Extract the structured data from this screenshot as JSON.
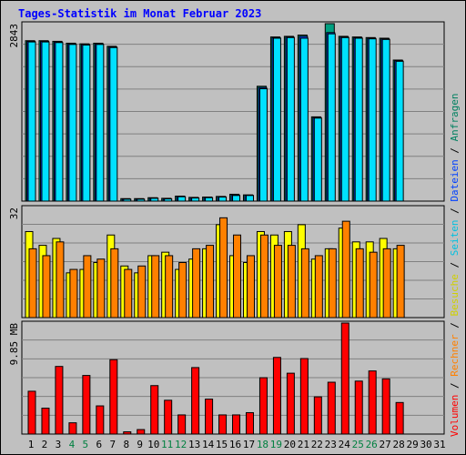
{
  "title": "Tages-Statistik im Monat Februar 2023",
  "colors": {
    "background": "#c0c0c0",
    "plot_bg": "#c0c0c0",
    "grid": "#808080",
    "title": "#0000ff",
    "hits": "#00a080",
    "files": "#0040ff",
    "pages": "#00e0ff",
    "visits": "#ffff00",
    "sites": "#ff8000",
    "volume": "#ff0000",
    "weekend_label": "#008040"
  },
  "right_axis_labels": [
    {
      "text": "Volumen",
      "color": "#ff0000"
    },
    {
      "text": " / ",
      "color": "#000000"
    },
    {
      "text": "Rechner",
      "color": "#ff8000"
    },
    {
      "text": " / ",
      "color": "#000000"
    },
    {
      "text": "Besuche",
      "color": "#d0d000"
    },
    {
      "text": " / ",
      "color": "#000000"
    },
    {
      "text": "Seiten",
      "color": "#00c0e0"
    },
    {
      "text": " / ",
      "color": "#000000"
    },
    {
      "text": "Dateien",
      "color": "#0040ff"
    },
    {
      "text": " / ",
      "color": "#000000"
    },
    {
      "text": "Anfragen",
      "color": "#008060"
    }
  ],
  "chart_data": [
    {
      "type": "bar",
      "name": "hits-files-pages",
      "ymax_label": "2843",
      "ylim": [
        0,
        2843
      ],
      "categories": [
        "1",
        "2",
        "3",
        "4",
        "5",
        "6",
        "7",
        "8",
        "9",
        "10",
        "11",
        "12",
        "13",
        "14",
        "15",
        "16",
        "17",
        "18",
        "19",
        "20",
        "21",
        "22",
        "23",
        "24",
        "25",
        "26",
        "27",
        "28",
        "29",
        "30",
        "31"
      ],
      "weekend_days": [
        4,
        5,
        11,
        12,
        18,
        19,
        25,
        26
      ],
      "series": [
        {
          "values": [
            2570,
            2570,
            2560,
            2530,
            2520,
            2530,
            2480,
            40,
            40,
            55,
            45,
            80,
            60,
            65,
            75,
            110,
            100,
            1840,
            2630,
            2640,
            2660,
            1350,
            2843,
            2640,
            2630,
            2620,
            2610,
            2260,
            null,
            null,
            null
          ]
        },
        {
          "values": [
            2560,
            2560,
            2550,
            2520,
            2510,
            2520,
            2470,
            35,
            35,
            50,
            40,
            75,
            55,
            60,
            70,
            100,
            95,
            1820,
            2620,
            2630,
            2640,
            1340,
            2700,
            2630,
            2620,
            2610,
            2600,
            2250,
            null,
            null,
            null
          ]
        },
        {
          "values": [
            2550,
            2550,
            2540,
            2510,
            2500,
            2510,
            2460,
            30,
            30,
            45,
            35,
            70,
            50,
            55,
            65,
            90,
            90,
            1800,
            2610,
            2620,
            2610,
            1330,
            2680,
            2620,
            2610,
            2600,
            2590,
            2240,
            null,
            null,
            null
          ]
        }
      ]
    },
    {
      "type": "bar",
      "name": "visits-sites",
      "ymax_label": "32",
      "ylim": [
        0,
        32
      ],
      "categories": [
        "1",
        "2",
        "3",
        "4",
        "5",
        "6",
        "7",
        "8",
        "9",
        "10",
        "11",
        "12",
        "13",
        "14",
        "15",
        "16",
        "17",
        "18",
        "19",
        "20",
        "21",
        "22",
        "23",
        "24",
        "25",
        "26",
        "27",
        "28",
        "29",
        "30",
        "31"
      ],
      "series": [
        {
          "values": [
            25,
            21,
            23,
            13,
            14,
            16,
            24,
            15,
            13,
            18,
            19,
            14,
            17,
            20,
            27,
            18,
            16,
            25,
            24,
            25,
            27,
            17,
            20,
            26,
            22,
            22,
            23,
            20,
            null,
            null,
            null
          ]
        },
        {
          "values": [
            20,
            18,
            22,
            14,
            18,
            17,
            20,
            14,
            15,
            18,
            18,
            16,
            20,
            21,
            29,
            24,
            18,
            24,
            21,
            21,
            20,
            18,
            20,
            28,
            20,
            19,
            20,
            21,
            null,
            null,
            null
          ]
        }
      ]
    },
    {
      "type": "bar",
      "name": "volume",
      "ymax_label": "9.85 MB",
      "ylim": [
        0,
        9.85
      ],
      "categories": [
        "1",
        "2",
        "3",
        "4",
        "5",
        "6",
        "7",
        "8",
        "9",
        "10",
        "11",
        "12",
        "13",
        "14",
        "15",
        "16",
        "17",
        "18",
        "19",
        "20",
        "21",
        "22",
        "23",
        "24",
        "25",
        "26",
        "27",
        "28",
        "29",
        "30",
        "31"
      ],
      "series": [
        {
          "values": [
            3.8,
            2.3,
            6.0,
            1.0,
            5.2,
            2.5,
            6.6,
            0.2,
            0.4,
            4.3,
            3.0,
            1.7,
            5.9,
            3.1,
            1.7,
            1.7,
            1.9,
            5.0,
            6.8,
            5.4,
            6.7,
            3.3,
            4.6,
            9.85,
            4.7,
            5.6,
            4.9,
            2.8,
            null,
            null,
            null
          ]
        }
      ]
    }
  ]
}
